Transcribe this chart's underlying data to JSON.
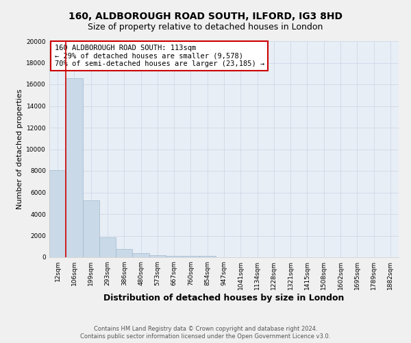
{
  "title": "160, ALDBOROUGH ROAD SOUTH, ILFORD, IG3 8HD",
  "subtitle": "Size of property relative to detached houses in London",
  "xlabel": "Distribution of detached houses by size in London",
  "ylabel": "Number of detached properties",
  "footnote1": "Contains HM Land Registry data © Crown copyright and database right 2024.",
  "footnote2": "Contains public sector information licensed under the Open Government Licence v3.0.",
  "annotation_line1": "160 ALDBOROUGH ROAD SOUTH: 113sqm",
  "annotation_line2": "← 29% of detached houses are smaller (9,578)",
  "annotation_line3": "70% of semi-detached houses are larger (23,185) →",
  "categories": [
    "12sqm",
    "106sqm",
    "199sqm",
    "293sqm",
    "386sqm",
    "480sqm",
    "573sqm",
    "667sqm",
    "760sqm",
    "854sqm",
    "947sqm",
    "1041sqm",
    "1134sqm",
    "1228sqm",
    "1321sqm",
    "1415sqm",
    "1508sqm",
    "1602sqm",
    "1695sqm",
    "1789sqm",
    "1882sqm"
  ],
  "values": [
    8050,
    16600,
    5250,
    1850,
    750,
    400,
    210,
    155,
    130,
    125,
    0,
    0,
    0,
    0,
    0,
    0,
    0,
    0,
    0,
    0,
    0
  ],
  "bar_color": "#c9d9e8",
  "bar_edgecolor": "#a0b8cc",
  "ylim": [
    0,
    20000
  ],
  "yticks": [
    0,
    2000,
    4000,
    6000,
    8000,
    10000,
    12000,
    14000,
    16000,
    18000,
    20000
  ],
  "grid_color": "#d0d8e8",
  "background_color": "#e8eef5",
  "fig_background": "#f0f0f0",
  "annotation_box_color": "#ffffff",
  "annotation_box_edgecolor": "#cc0000",
  "red_line_color": "#cc0000",
  "title_fontsize": 10,
  "subtitle_fontsize": 9,
  "xlabel_fontsize": 9,
  "ylabel_fontsize": 8,
  "tick_fontsize": 6.5,
  "annotation_fontsize": 7.5,
  "footnote_fontsize": 6
}
